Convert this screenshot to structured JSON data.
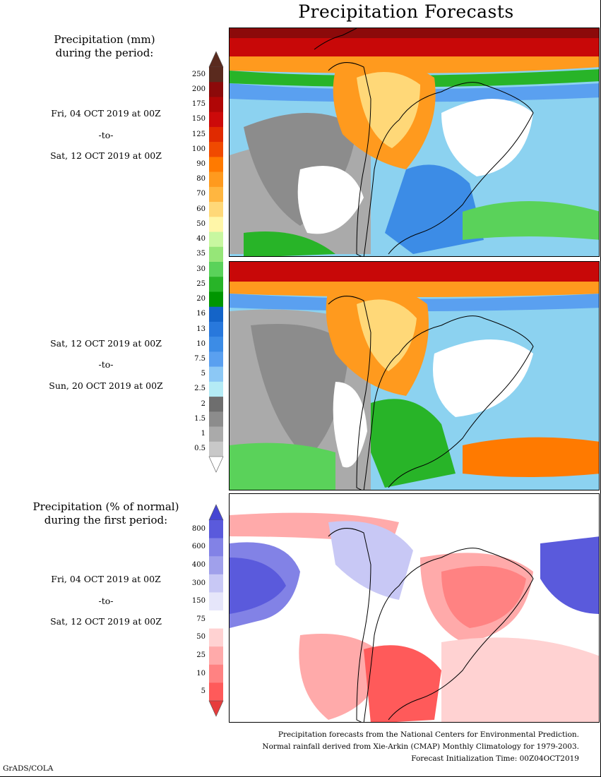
{
  "title": "Precipitation Forecasts",
  "mm_header": [
    "Precipitation (mm)",
    "during the period:"
  ],
  "pct_header": [
    "Precipitation (% of normal)",
    "during the first period:"
  ],
  "periods": [
    {
      "start": "Fri, 04 OCT 2019 at 00Z",
      "sep": "-to-",
      "end": "Sat, 12 OCT 2019 at 00Z"
    },
    {
      "start": "Sat, 12 OCT 2019 at 00Z",
      "sep": "-to-",
      "end": "Sun, 20 OCT 2019 at 00Z"
    },
    {
      "start": "Fri, 04 OCT 2019 at 00Z",
      "sep": "-to-",
      "end": "Sat, 12 OCT 2019 at 00Z"
    }
  ],
  "mm_scale": {
    "ticks": [
      "250",
      "200",
      "175",
      "150",
      "125",
      "100",
      "90",
      "80",
      "70",
      "60",
      "50",
      "40",
      "35",
      "30",
      "25",
      "20",
      "16",
      "13",
      "10",
      "7.5",
      "5",
      "2.5",
      "2",
      "1.5",
      "1",
      "0.5"
    ],
    "colors": [
      "#5a2a1e",
      "#8c0a0a",
      "#b00606",
      "#cc0a0a",
      "#e02a00",
      "#f04a00",
      "#ff7a00",
      "#ff9a1e",
      "#ffb640",
      "#ffd878",
      "#fff6a8",
      "#c8f7a0",
      "#96e678",
      "#5ad25a",
      "#28b428",
      "#009600",
      "#1464c8",
      "#2878dc",
      "#3c8ce6",
      "#5aa0f0",
      "#8cc8f5",
      "#b4ebf5",
      "#6e6e6e",
      "#8c8c8c",
      "#aaaaaa",
      "#c8c8c8"
    ],
    "top_arrow": "#5a2a1e",
    "bottom_arrow": "#ffffff"
  },
  "pct_scale": {
    "ticks": [
      "800",
      "600",
      "400",
      "300",
      "150",
      "75",
      "50",
      "25",
      "10",
      "5"
    ],
    "colors": [
      "#5a5adc",
      "#8282e6",
      "#a0a0eb",
      "#c8c8f5",
      "#e6e6fa",
      "#ffffff",
      "#ffd2d2",
      "#ffaaaa",
      "#ff8282",
      "#ff5a5a"
    ],
    "top_arrow": "#4646d2",
    "bottom_arrow": "#e63c3c"
  },
  "footer": [
    "Precipitation forecasts from the National Centers for Environmental Prediction.",
    "Normal rainfall derived from Xie-Arkin (CMAP) Monthly Climatology for 1979-2003.",
    "Forecast Initialization Time: 00Z04OCT2019"
  ],
  "credit": "GrADS/COLA"
}
